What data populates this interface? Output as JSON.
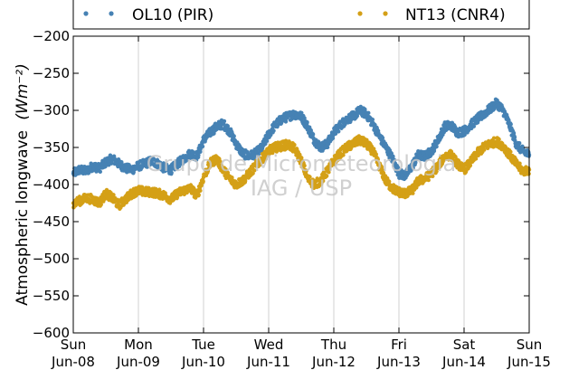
{
  "chart_data": {
    "type": "scatter",
    "title": "",
    "ylabel": "Atmospheric longwave",
    "ylabel_unit": "(Wm⁻²)",
    "xlabel": "",
    "ylim": [
      -600,
      -200
    ],
    "yticks": [
      -600,
      -550,
      -500,
      -450,
      -400,
      -350,
      -300,
      -250,
      -200
    ],
    "xlim": [
      0,
      7
    ],
    "xticks": [
      {
        "x": 0,
        "day": "Sun",
        "date": "Jun-08"
      },
      {
        "x": 1,
        "day": "Mon",
        "date": "Jun-09"
      },
      {
        "x": 2,
        "day": "Tue",
        "date": "Jun-10"
      },
      {
        "x": 3,
        "day": "Wed",
        "date": "Jun-11"
      },
      {
        "x": 4,
        "day": "Thu",
        "date": "Jun-12"
      },
      {
        "x": 5,
        "day": "Fri",
        "date": "Jun-13"
      },
      {
        "x": 6,
        "day": "Sat",
        "date": "Jun-14"
      },
      {
        "x": 7,
        "day": "Sun",
        "date": "Jun-15"
      }
    ],
    "x_unit": "days",
    "grid": "x-only",
    "legend_position": "top",
    "watermark": [
      "Grupo de Micrometeorologia",
      "IAG / USP"
    ],
    "series": [
      {
        "name": "OL10 (PIR)",
        "color": "#4682b4",
        "x": [
          0.0,
          0.1,
          0.2,
          0.3,
          0.4,
          0.5,
          0.6,
          0.7,
          0.8,
          0.9,
          1.0,
          1.1,
          1.2,
          1.3,
          1.4,
          1.5,
          1.6,
          1.7,
          1.8,
          1.9,
          2.0,
          2.1,
          2.2,
          2.3,
          2.4,
          2.5,
          2.6,
          2.7,
          2.8,
          2.9,
          3.0,
          3.1,
          3.2,
          3.3,
          3.4,
          3.5,
          3.6,
          3.7,
          3.8,
          3.9,
          4.0,
          4.1,
          4.2,
          4.3,
          4.4,
          4.5,
          4.6,
          4.7,
          4.8,
          4.9,
          5.0,
          5.1,
          5.2,
          5.3,
          5.4,
          5.5,
          5.6,
          5.7,
          5.8,
          5.9,
          6.0,
          6.1,
          6.2,
          6.3,
          6.4,
          6.5,
          6.6,
          6.7,
          6.8,
          6.9,
          7.0
        ],
        "y": [
          -385,
          -380,
          -382,
          -375,
          -378,
          -370,
          -365,
          -372,
          -378,
          -380,
          -375,
          -372,
          -368,
          -372,
          -378,
          -380,
          -372,
          -365,
          -358,
          -362,
          -340,
          -330,
          -322,
          -318,
          -328,
          -345,
          -358,
          -362,
          -358,
          -350,
          -332,
          -320,
          -312,
          -308,
          -305,
          -308,
          -322,
          -340,
          -350,
          -345,
          -330,
          -320,
          -312,
          -308,
          -300,
          -305,
          -318,
          -335,
          -350,
          -365,
          -385,
          -388,
          -375,
          -360,
          -362,
          -355,
          -340,
          -322,
          -320,
          -330,
          -328,
          -320,
          -312,
          -305,
          -298,
          -290,
          -300,
          -320,
          -345,
          -355,
          -360
        ]
      },
      {
        "name": "NT13 (CNR4)",
        "color": "#d4a017",
        "x": [
          0.0,
          0.1,
          0.2,
          0.3,
          0.4,
          0.5,
          0.6,
          0.7,
          0.8,
          0.9,
          1.0,
          1.1,
          1.2,
          1.3,
          1.4,
          1.5,
          1.6,
          1.7,
          1.8,
          1.9,
          2.0,
          2.1,
          2.2,
          2.3,
          2.4,
          2.5,
          2.6,
          2.7,
          2.8,
          2.9,
          3.0,
          3.1,
          3.2,
          3.3,
          3.4,
          3.5,
          3.6,
          3.7,
          3.8,
          3.9,
          4.0,
          4.1,
          4.2,
          4.3,
          4.4,
          4.5,
          4.6,
          4.7,
          4.8,
          4.9,
          5.0,
          5.1,
          5.2,
          5.3,
          5.4,
          5.5,
          5.6,
          5.7,
          5.8,
          5.9,
          6.0,
          6.1,
          6.2,
          6.3,
          6.4,
          6.5,
          6.6,
          6.7,
          6.8,
          6.9,
          7.0
        ],
        "y": [
          -425,
          -422,
          -418,
          -420,
          -425,
          -412,
          -418,
          -428,
          -420,
          -412,
          -408,
          -410,
          -410,
          -412,
          -415,
          -420,
          -412,
          -408,
          -405,
          -415,
          -390,
          -372,
          -365,
          -380,
          -392,
          -400,
          -395,
          -385,
          -375,
          -365,
          -355,
          -350,
          -348,
          -346,
          -352,
          -368,
          -392,
          -400,
          -395,
          -382,
          -368,
          -358,
          -350,
          -345,
          -340,
          -345,
          -355,
          -375,
          -395,
          -405,
          -410,
          -412,
          -408,
          -395,
          -392,
          -385,
          -375,
          -362,
          -360,
          -372,
          -380,
          -370,
          -358,
          -350,
          -345,
          -342,
          -348,
          -360,
          -372,
          -382,
          -380
        ]
      }
    ]
  }
}
